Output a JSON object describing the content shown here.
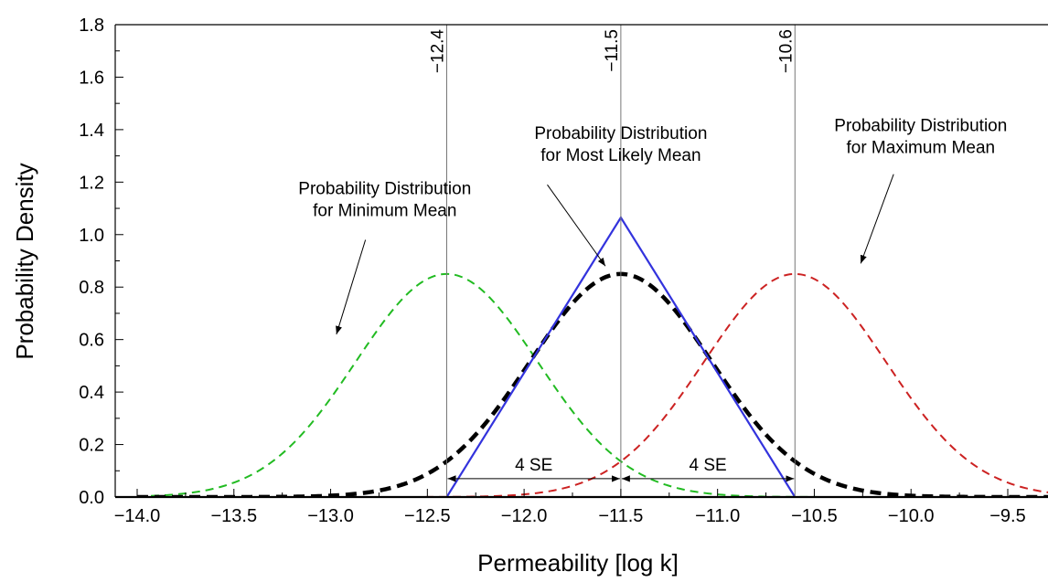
{
  "chart_data": {
    "type": "line",
    "xlabel": "Permeability [log k]",
    "ylabel": "Probability Density",
    "xlim": [
      -14.0,
      -9.2
    ],
    "ylim": [
      0.0,
      1.8
    ],
    "x_ticks": [
      "−14.0",
      "−13.5",
      "−13.0",
      "−12.5",
      "−12.0",
      "−11.5",
      "−11.0",
      "−10.5",
      "−10.0",
      "−9.5"
    ],
    "y_ticks": [
      "0.0",
      "0.2",
      "0.4",
      "0.6",
      "0.8",
      "1.0",
      "1.2",
      "1.4",
      "1.6",
      "1.8"
    ],
    "grid": false,
    "series": [
      {
        "kind": "normal",
        "mean": -12.4,
        "peak": 0.85,
        "sd": 0.47,
        "color": "#22bb22",
        "style": "dashed"
      },
      {
        "kind": "normal",
        "mean": -11.5,
        "peak": 0.85,
        "sd": 0.47,
        "color": "#000000",
        "style": "dashed-bold"
      },
      {
        "kind": "normal",
        "mean": -10.6,
        "peak": 0.85,
        "sd": 0.47,
        "color": "#cc2222",
        "style": "dashed"
      },
      {
        "kind": "triangle",
        "x": [
          -12.4,
          -11.5,
          -10.6
        ],
        "y": [
          0.0,
          1.065,
          0.0
        ],
        "color": "#3333dd",
        "style": "solid"
      }
    ],
    "vlines": [
      {
        "x": -12.4,
        "label": "−12.4"
      },
      {
        "x": -11.5,
        "label": "−11.5"
      },
      {
        "x": -10.6,
        "label": "−10.6"
      }
    ],
    "spans": [
      {
        "from": -12.4,
        "to": -11.5,
        "y": 0.07,
        "label": "4 SE"
      },
      {
        "from": -11.5,
        "to": -10.6,
        "y": 0.07,
        "label": "4 SE"
      }
    ],
    "annotations": [
      {
        "lines": [
          "Probability Distribution",
          "for Minimum Mean"
        ],
        "anchor": [
          -12.72,
          1.155
        ],
        "line_from": [
          -12.82,
          0.98
        ],
        "line_to": [
          -12.97,
          0.62
        ]
      },
      {
        "lines": [
          "Probability Distribution",
          "for Most Likely Mean"
        ],
        "anchor": [
          -11.5,
          1.365
        ],
        "line_from": [
          -11.88,
          1.19
        ],
        "line_to": [
          -11.58,
          0.88
        ]
      },
      {
        "lines": [
          "Probability Distribution",
          "for Maximum Mean"
        ],
        "anchor": [
          -9.95,
          1.395
        ],
        "line_from": [
          -10.09,
          1.23
        ],
        "line_to": [
          -10.26,
          0.89
        ]
      }
    ]
  }
}
